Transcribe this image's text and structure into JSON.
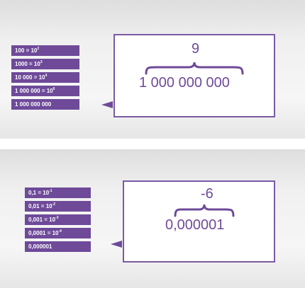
{
  "top": {
    "labels": [
      {
        "base": "100  =  10",
        "power": "2"
      },
      {
        "base": "1000  =  10",
        "power": "3"
      },
      {
        "base": "10 000  =  10",
        "power": "4"
      },
      {
        "base": "1 000 000  =  10",
        "power": "6"
      },
      {
        "base": "1 000 000 000",
        "power": ""
      }
    ],
    "exponent": "9",
    "number": "1 000 000 000"
  },
  "bottom": {
    "labels": [
      {
        "base": "0,1 = 10",
        "power": "-1"
      },
      {
        "base": "0,01 = 10",
        "power": "-2"
      },
      {
        "base": "0,001 = 10",
        "power": "-3"
      },
      {
        "base": "0,0001 = 10",
        "power": "-4"
      },
      {
        "base": "0,000001",
        "power": ""
      }
    ],
    "exponent": "-6",
    "number": "0,000001"
  },
  "colors": {
    "accent": "#6e4a99",
    "border": "#7a5aa6"
  }
}
